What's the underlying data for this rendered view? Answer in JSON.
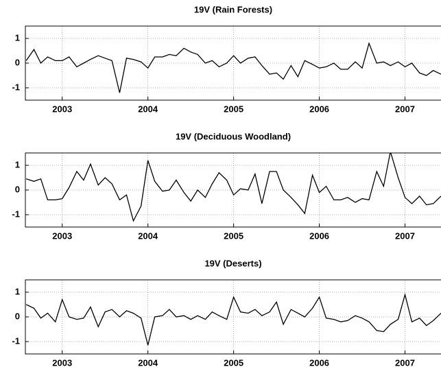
{
  "chart_data": [
    {
      "type": "line",
      "title": "19V (Rain Forests)",
      "color": "#000000",
      "grid": true,
      "xlim": [
        2002.57,
        2007.42
      ],
      "xticks": [
        2003,
        2004,
        2005,
        2006,
        2007
      ],
      "ylim": [
        -1.5,
        1.5
      ],
      "yticks": [
        -1,
        0,
        1
      ],
      "x": [
        2002.58,
        2002.67,
        2002.75,
        2002.83,
        2002.92,
        2003.0,
        2003.08,
        2003.17,
        2003.25,
        2003.33,
        2003.42,
        2003.5,
        2003.58,
        2003.67,
        2003.75,
        2003.83,
        2003.92,
        2004.0,
        2004.08,
        2004.17,
        2004.25,
        2004.33,
        2004.42,
        2004.5,
        2004.58,
        2004.67,
        2004.75,
        2004.83,
        2004.92,
        2005.0,
        2005.08,
        2005.17,
        2005.25,
        2005.33,
        2005.42,
        2005.5,
        2005.58,
        2005.67,
        2005.75,
        2005.83,
        2005.92,
        2006.0,
        2006.08,
        2006.17,
        2006.25,
        2006.33,
        2006.42,
        2006.5,
        2006.58,
        2006.67,
        2006.75,
        2006.83,
        2006.92,
        2007.0,
        2007.08,
        2007.17,
        2007.25,
        2007.33,
        2007.42
      ],
      "values": [
        0.1,
        0.55,
        0,
        0.25,
        0.1,
        0.1,
        0.25,
        -0.15,
        0,
        0.15,
        0.3,
        0.2,
        0.1,
        -1.2,
        0.2,
        0.15,
        0.05,
        -0.2,
        0.25,
        0.25,
        0.35,
        0.3,
        0.6,
        0.45,
        0.35,
        0,
        0.1,
        -0.15,
        0,
        0.3,
        0,
        0.2,
        0.25,
        -0.1,
        -0.45,
        -0.4,
        -0.65,
        -0.1,
        -0.55,
        0.1,
        -0.05,
        -0.2,
        -0.15,
        0,
        -0.25,
        -0.25,
        0.05,
        -0.2,
        0.8,
        0,
        0.05,
        -0.1,
        0.05,
        -0.15,
        0,
        -0.4,
        -0.5,
        -0.3,
        -0.45
      ]
    },
    {
      "type": "line",
      "title": "19V (Deciduous Woodland)",
      "color": "#000000",
      "grid": true,
      "xlim": [
        2002.57,
        2007.42
      ],
      "xticks": [
        2003,
        2004,
        2005,
        2006,
        2007
      ],
      "ylim": [
        -1.5,
        1.5
      ],
      "yticks": [
        -1,
        0,
        1
      ],
      "x": [
        2002.58,
        2002.67,
        2002.75,
        2002.83,
        2002.92,
        2003.0,
        2003.08,
        2003.17,
        2003.25,
        2003.33,
        2003.42,
        2003.5,
        2003.58,
        2003.67,
        2003.75,
        2003.83,
        2003.92,
        2004.0,
        2004.08,
        2004.17,
        2004.25,
        2004.33,
        2004.42,
        2004.5,
        2004.58,
        2004.67,
        2004.75,
        2004.83,
        2004.92,
        2005.0,
        2005.08,
        2005.17,
        2005.25,
        2005.33,
        2005.42,
        2005.5,
        2005.58,
        2005.67,
        2005.75,
        2005.83,
        2005.92,
        2006.0,
        2006.08,
        2006.17,
        2006.25,
        2006.33,
        2006.42,
        2006.5,
        2006.58,
        2006.67,
        2006.75,
        2006.83,
        2006.92,
        2007.0,
        2007.08,
        2007.17,
        2007.25,
        2007.33,
        2007.42
      ],
      "values": [
        0.45,
        0.35,
        0.45,
        -0.4,
        -0.4,
        -0.35,
        0.1,
        0.75,
        0.4,
        1.05,
        0.2,
        0.5,
        0.25,
        -0.4,
        -0.2,
        -1.25,
        -0.65,
        1.2,
        0.35,
        -0.05,
        0,
        0.4,
        -0.1,
        -0.45,
        0,
        -0.3,
        0.25,
        0.7,
        0.4,
        -0.2,
        0.05,
        0,
        0.65,
        -0.55,
        0.75,
        0.75,
        0,
        -0.3,
        -0.6,
        -0.95,
        0.6,
        -0.1,
        0.15,
        -0.4,
        -0.4,
        -0.3,
        -0.5,
        -0.35,
        -0.4,
        0.75,
        0.15,
        1.55,
        0.5,
        -0.3,
        -0.55,
        -0.25,
        -0.6,
        -0.55,
        -0.25
      ]
    },
    {
      "type": "line",
      "title": "19V (Deserts)",
      "color": "#000000",
      "grid": true,
      "xlim": [
        2002.57,
        2007.42
      ],
      "xticks": [
        2003,
        2004,
        2005,
        2006,
        2007
      ],
      "ylim": [
        -1.5,
        1.5
      ],
      "yticks": [
        -1,
        0,
        1
      ],
      "x": [
        2002.58,
        2002.67,
        2002.75,
        2002.83,
        2002.92,
        2003.0,
        2003.08,
        2003.17,
        2003.25,
        2003.33,
        2003.42,
        2003.5,
        2003.58,
        2003.67,
        2003.75,
        2003.83,
        2003.92,
        2004.0,
        2004.08,
        2004.17,
        2004.25,
        2004.33,
        2004.42,
        2004.5,
        2004.58,
        2004.67,
        2004.75,
        2004.83,
        2004.92,
        2005.0,
        2005.08,
        2005.17,
        2005.25,
        2005.33,
        2005.42,
        2005.5,
        2005.58,
        2005.67,
        2005.75,
        2005.83,
        2005.92,
        2006.0,
        2006.08,
        2006.17,
        2006.25,
        2006.33,
        2006.42,
        2006.5,
        2006.58,
        2006.67,
        2006.75,
        2006.83,
        2006.92,
        2007.0,
        2007.08,
        2007.17,
        2007.25,
        2007.33,
        2007.42
      ],
      "values": [
        0.5,
        0.35,
        -0.05,
        0.15,
        -0.2,
        0.7,
        0,
        -0.1,
        -0.05,
        0.4,
        -0.4,
        0.2,
        0.3,
        0,
        0.25,
        0.15,
        -0.05,
        -1.15,
        0,
        0.05,
        0.3,
        0,
        0.05,
        -0.1,
        0.05,
        -0.1,
        0.2,
        0.05,
        -0.1,
        0.8,
        0.2,
        0.15,
        0.3,
        0.05,
        0.2,
        0.6,
        -0.3,
        0.3,
        0.15,
        0,
        0.35,
        0.8,
        -0.05,
        -0.1,
        -0.2,
        -0.15,
        0.05,
        -0.05,
        -0.2,
        -0.55,
        -0.6,
        -0.3,
        -0.1,
        0.9,
        -0.2,
        -0.05,
        -0.35,
        -0.15,
        0.15
      ]
    }
  ]
}
